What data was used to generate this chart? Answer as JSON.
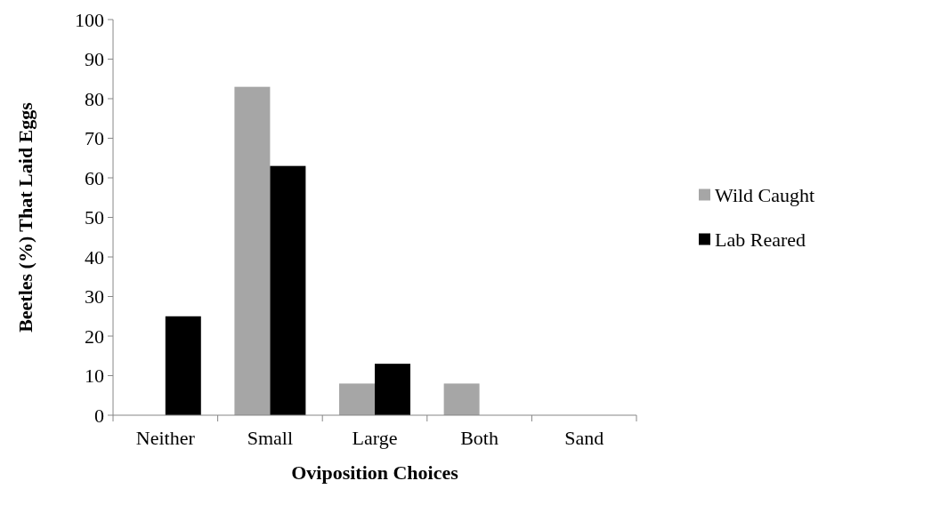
{
  "chart_data": {
    "type": "bar",
    "xlabel": "Oviposition Choices",
    "ylabel": "Beetles (%) That Laid Eggs",
    "categories": [
      "Neither",
      "Small",
      "Large",
      "Both",
      "Sand"
    ],
    "series": [
      {
        "name": "Wild Caught",
        "color": "#a6a6a6",
        "values": [
          0,
          83,
          8,
          8,
          0
        ]
      },
      {
        "name": "Lab Reared",
        "color": "#000000",
        "values": [
          25,
          63,
          13,
          0,
          0
        ]
      }
    ],
    "ylim": [
      0,
      100
    ],
    "yticks": [
      0,
      10,
      20,
      30,
      40,
      50,
      60,
      70,
      80,
      90,
      100
    ],
    "grid": false,
    "legend": "right"
  }
}
